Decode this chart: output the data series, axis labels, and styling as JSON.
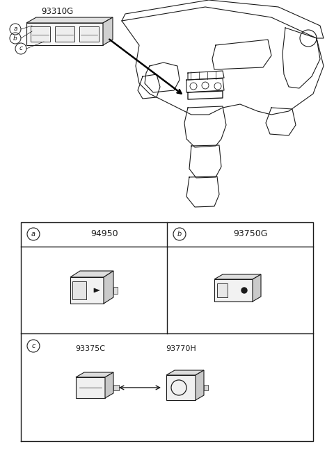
{
  "bg_color": "#ffffff",
  "line_color": "#1a1a1a",
  "part_number_main": "93310G",
  "cell_a_part": "94950",
  "cell_b_part": "93750G",
  "cell_c1_part": "93375C",
  "cell_c2_part": "93770H",
  "fig_width": 4.8,
  "fig_height": 6.55,
  "dpi": 100
}
